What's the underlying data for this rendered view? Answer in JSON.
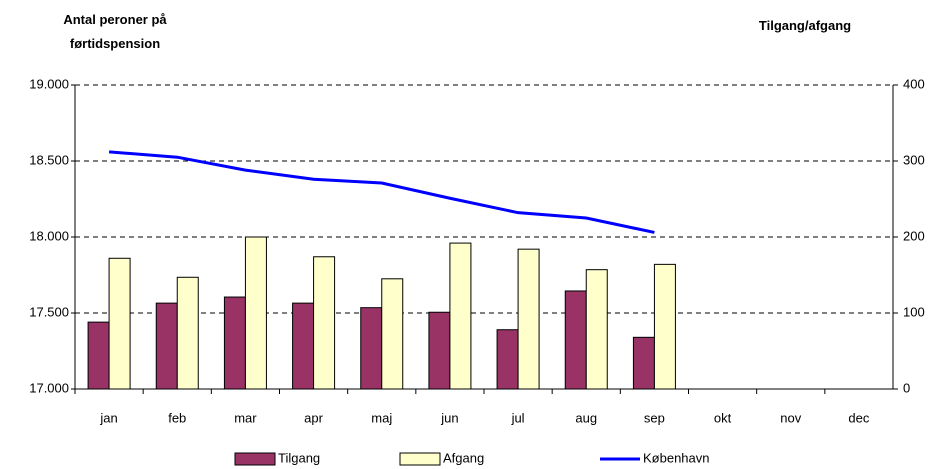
{
  "chart_data": {
    "type": "bar-line",
    "y_label": "Antal peroner på førtidspension",
    "y2_label": "Tilgang/afgang",
    "categories": [
      "jan",
      "feb",
      "mar",
      "apr",
      "maj",
      "jun",
      "jul",
      "aug",
      "sep",
      "okt",
      "nov",
      "dec"
    ],
    "ylim": [
      17000,
      19000
    ],
    "yticks": [
      {
        "value": 17000,
        "label": "17.000"
      },
      {
        "value": 17500,
        "label": "17.500"
      },
      {
        "value": 18000,
        "label": "18.000"
      },
      {
        "value": 18500,
        "label": "18.500"
      },
      {
        "value": 19000,
        "label": "19.000"
      }
    ],
    "y2lim": [
      0,
      400
    ],
    "y2ticks": [
      0,
      100,
      200,
      300,
      400
    ],
    "grid": true,
    "series": [
      {
        "name": "Tilgang",
        "type": "bar",
        "axis": "y2",
        "color": "#993366",
        "values": [
          88,
          113,
          121,
          113,
          107,
          101,
          78,
          129,
          68,
          null,
          null,
          null
        ]
      },
      {
        "name": "Afgang",
        "type": "bar",
        "axis": "y2",
        "color": "#ffffcc",
        "values": [
          172,
          147,
          200,
          174,
          145,
          192,
          184,
          157,
          164,
          null,
          null,
          null
        ]
      },
      {
        "name": "København",
        "type": "line",
        "axis": "y",
        "color": "#0000ff",
        "values": [
          18560,
          18525,
          18440,
          18380,
          18355,
          18255,
          18160,
          18125,
          18030,
          null,
          null,
          null
        ]
      }
    ]
  }
}
